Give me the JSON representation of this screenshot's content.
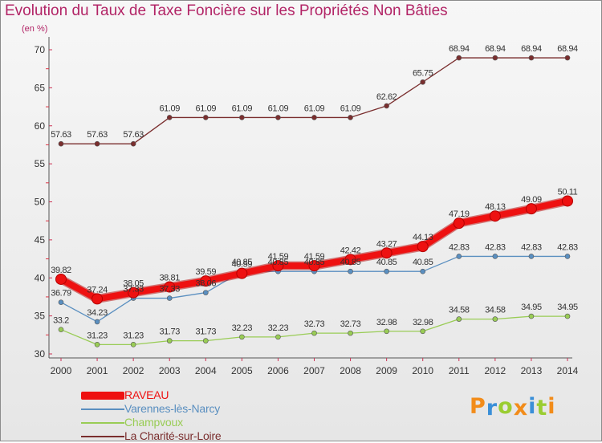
{
  "header": {
    "title": "Evolution du Taux de Taxe Foncière sur les Propriétés Non Bâties",
    "subtitle": "(en %)"
  },
  "chart_data": {
    "type": "line",
    "title": "Evolution du Taux de Taxe Foncière sur les Propriétés Non Bâties",
    "ylabel": "(en %)",
    "xlabel": "",
    "x": [
      "2000",
      "2001",
      "2002",
      "2003",
      "2004",
      "2005",
      "2006",
      "2007",
      "2008",
      "2009",
      "2010",
      "2011",
      "2012",
      "2013",
      "2014"
    ],
    "ylim": [
      30,
      70
    ],
    "yticks": [
      30,
      35,
      40,
      45,
      50,
      55,
      60,
      65,
      70
    ],
    "grid": false,
    "legend": "bottom-left",
    "series": [
      {
        "name": "RAVEAU",
        "color": "#ee1111",
        "values": [
          39.82,
          37.24,
          38.05,
          38.81,
          39.59,
          40.59,
          41.59,
          41.59,
          42.42,
          43.27,
          44.13,
          47.19,
          48.13,
          49.09,
          50.11
        ],
        "labels": [
          "39.82",
          "37.24",
          "38.05",
          "38.81",
          "39.59",
          "40.59",
          "41.59",
          "41.59",
          "42.42",
          "43.27",
          "44.13",
          "47.19",
          "48.13",
          "49.09",
          "50.11"
        ]
      },
      {
        "name": "Varennes-lès-Narcy",
        "color": "#5a8fc0",
        "values": [
          36.79,
          34.23,
          37.33,
          37.33,
          38.06,
          40.85,
          40.85,
          40.85,
          40.85,
          40.85,
          40.85,
          42.83,
          42.83,
          42.83,
          42.83
        ],
        "labels": [
          "36.79",
          "34.23",
          "37.33",
          "37.33",
          "38.06",
          "40.85",
          "40.85",
          "40.85",
          "40.85",
          "40.85",
          "40.85",
          "42.83",
          "42.83",
          "42.83",
          "42.83"
        ]
      },
      {
        "name": "Champvoux",
        "color": "#99cc55",
        "values": [
          33.2,
          31.23,
          31.23,
          31.73,
          31.73,
          32.23,
          32.23,
          32.73,
          32.73,
          32.98,
          32.98,
          34.58,
          34.58,
          34.95,
          34.95
        ],
        "labels": [
          "33.2",
          "31.23",
          "31.23",
          "31.73",
          "31.73",
          "32.23",
          "32.23",
          "32.73",
          "32.73",
          "32.98",
          "32.98",
          "34.58",
          "34.58",
          "34.95",
          "34.95"
        ]
      },
      {
        "name": "La Charité-sur-Loire",
        "color": "#7a2e2e",
        "values": [
          57.63,
          57.63,
          57.63,
          61.09,
          61.09,
          61.09,
          61.09,
          61.09,
          61.09,
          62.62,
          65.75,
          68.94,
          68.94,
          68.94,
          68.94
        ],
        "labels": [
          "57.63",
          "57.63",
          "57.63",
          "61.09",
          "61.09",
          "61.09",
          "61.09",
          "61.09",
          "61.09",
          "62.62",
          "65.75",
          "68.94",
          "68.94",
          "68.94",
          "68.94"
        ]
      }
    ]
  },
  "logo": {
    "letters": [
      "P",
      "r",
      "o",
      "x",
      "i",
      "t",
      "i"
    ],
    "colors": [
      "#f28c1a",
      "#3a8fd8",
      "#9acd32",
      "#f28c1a",
      "#3a8fd8",
      "#9acd32",
      "#f28c1a"
    ]
  }
}
